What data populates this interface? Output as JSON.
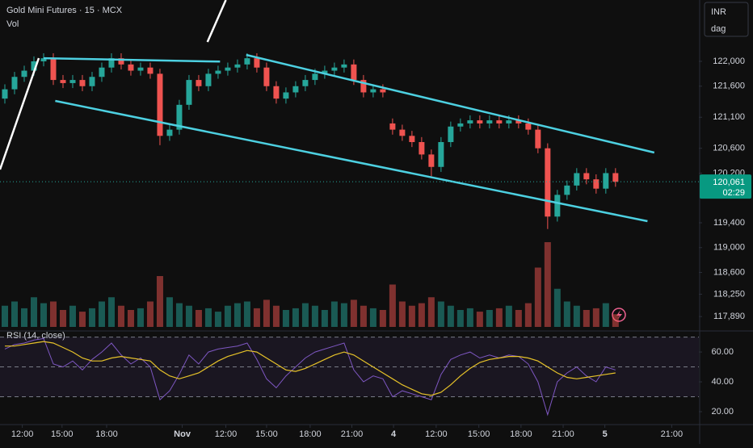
{
  "chart_data": {
    "type": "candlestick",
    "title": "Gold Mini Futures · 15 · MCX",
    "volume_label": "Vol",
    "currency": "INR",
    "interval_label": "dag",
    "up_color": "#26a69a",
    "down_color": "#ef5350",
    "xlim": [
      -0.5,
      71.6
    ],
    "xticks": [
      {
        "value": 1.8,
        "label": "12:00"
      },
      {
        "value": 5.9,
        "label": "15:00"
      },
      {
        "value": 10.5,
        "label": "18:00"
      },
      {
        "value": 18.3,
        "label": "Nov"
      },
      {
        "value": 22.8,
        "label": "12:00"
      },
      {
        "value": 27,
        "label": "15:00"
      },
      {
        "value": 31.5,
        "label": "18:00"
      },
      {
        "value": 35.8,
        "label": "21:00"
      },
      {
        "value": 40.1,
        "label": "4"
      },
      {
        "value": 44.5,
        "label": "12:00"
      },
      {
        "value": 48.9,
        "label": "15:00"
      },
      {
        "value": 53.25,
        "label": "18:00"
      },
      {
        "value": 57.6,
        "label": "21:00"
      },
      {
        "value": 61.9,
        "label": "5"
      },
      {
        "value": 68.8,
        "label": "21:00"
      }
    ],
    "ylim": [
      117658,
      122988
    ],
    "yticks": [
      {
        "value": 122000,
        "label": "122,000"
      },
      {
        "value": 121600,
        "label": "121,600"
      },
      {
        "value": 121100,
        "label": "121,100"
      },
      {
        "value": 120600,
        "label": "120,600"
      },
      {
        "value": 120200,
        "label": "120,200"
      },
      {
        "value": 119400,
        "label": "119,400"
      },
      {
        "value": 119000,
        "label": "119,000"
      },
      {
        "value": 118600,
        "label": "118,600"
      },
      {
        "value": 118250,
        "label": "118,250"
      },
      {
        "value": 117890,
        "label": "117,890"
      }
    ],
    "last_price": {
      "value": 120061,
      "label": "120,061"
    },
    "countdown": "02:29",
    "open": [
      121400,
      121550,
      121750,
      121850,
      122000,
      122050,
      121700,
      121650,
      121700,
      121600,
      121750,
      121900,
      122050,
      121950,
      121850,
      121900,
      121800,
      120800,
      120900,
      121300,
      121700,
      121600,
      121800,
      121850,
      121900,
      121950,
      122050,
      121900,
      121600,
      121400,
      121500,
      121600,
      121700,
      121800,
      121850,
      121900,
      121950,
      121700,
      121500,
      121550,
      121000,
      120900,
      120800,
      120700,
      120500,
      120300,
      120700,
      120950,
      121000,
      121050,
      121000,
      121050,
      121000,
      121050,
      121000,
      120900,
      120600,
      119500,
      119850,
      120000,
      120200,
      120100,
      119950,
      120200
    ],
    "high": [
      121630,
      121830,
      121930,
      122080,
      122130,
      122130,
      121780,
      121780,
      121780,
      121830,
      121980,
      122130,
      122130,
      122030,
      121980,
      121980,
      121880,
      120980,
      121380,
      121780,
      121780,
      121880,
      121930,
      121980,
      122030,
      122130,
      122130,
      121980,
      121680,
      121580,
      121680,
      121780,
      121880,
      121930,
      121980,
      122030,
      122030,
      121780,
      121630,
      121630,
      121080,
      120980,
      120880,
      120780,
      120580,
      120780,
      121030,
      121080,
      121130,
      121130,
      121130,
      121130,
      121130,
      121130,
      121080,
      120980,
      120680,
      119930,
      120080,
      120280,
      120280,
      120180,
      120280,
      120280
    ],
    "low": [
      121320,
      121470,
      121670,
      121770,
      121920,
      121620,
      121570,
      121570,
      121520,
      121520,
      121670,
      121820,
      121870,
      121770,
      121770,
      121720,
      120650,
      120720,
      120820,
      121220,
      121520,
      121520,
      121720,
      121770,
      121820,
      121870,
      121820,
      121520,
      121320,
      121320,
      121420,
      121520,
      121620,
      121720,
      121770,
      121820,
      121620,
      121420,
      121420,
      121420,
      120820,
      120720,
      120620,
      120420,
      120150,
      120220,
      120620,
      120870,
      120920,
      120920,
      120920,
      120920,
      120920,
      120920,
      120820,
      120520,
      119300,
      119420,
      119770,
      119920,
      120020,
      119870,
      119870,
      119980
    ],
    "close": [
      121550,
      121750,
      121850,
      122000,
      122050,
      121700,
      121650,
      121700,
      121600,
      121750,
      121900,
      122050,
      121950,
      121850,
      121900,
      121800,
      120800,
      120900,
      121300,
      121700,
      121600,
      121800,
      121850,
      121900,
      121950,
      122050,
      121900,
      121600,
      121400,
      121500,
      121600,
      121700,
      121800,
      121850,
      121900,
      121950,
      121700,
      121500,
      121550,
      121500,
      120900,
      120800,
      120700,
      120500,
      120300,
      120700,
      120950,
      121000,
      121050,
      121000,
      121050,
      121000,
      121050,
      121000,
      120900,
      120600,
      119500,
      119850,
      120000,
      120200,
      120100,
      119950,
      120200,
      120061
    ],
    "volume": [
      25,
      30,
      22,
      35,
      28,
      30,
      20,
      25,
      18,
      22,
      30,
      35,
      25,
      20,
      22,
      30,
      60,
      35,
      28,
      25,
      20,
      22,
      18,
      25,
      28,
      30,
      22,
      32,
      25,
      20,
      22,
      28,
      25,
      20,
      30,
      28,
      32,
      25,
      22,
      20,
      50,
      30,
      25,
      28,
      35,
      30,
      25,
      20,
      22,
      18,
      20,
      22,
      25,
      20,
      28,
      70,
      100,
      45,
      30,
      25,
      20,
      22,
      28,
      15
    ],
    "vlim": [
      0,
      100
    ],
    "drawings": [
      {
        "color": "#4dd0e1",
        "points": [
          [
            4,
            122050
          ],
          [
            22.2,
            121996
          ]
        ]
      },
      {
        "color": "#4dd0e1",
        "points": [
          [
            5.2,
            121363
          ],
          [
            66.3,
            119426
          ]
        ]
      },
      {
        "color": "#4dd0e1",
        "points": [
          [
            24.9,
            122104
          ],
          [
            67,
            120531
          ]
        ]
      },
      {
        "color": "#ffffff",
        "points": [
          [
            -0.5,
            120258
          ],
          [
            3.5,
            122052
          ]
        ]
      },
      {
        "color": "#ffffff",
        "points": [
          [
            20.9,
            122312
          ],
          [
            22.8,
            122988
          ]
        ]
      }
    ],
    "rsi": {
      "title": "RSI (14, close)",
      "ylim": [
        14.6,
        71.4
      ],
      "yticks": [
        {
          "value": 60,
          "label": "60.00"
        },
        {
          "value": 40,
          "label": "40.00"
        },
        {
          "value": 20,
          "label": "20.00"
        }
      ],
      "levels": [
        70,
        50,
        30
      ],
      "series": [
        {
          "color": "#7e57c2",
          "values": [
            62,
            65,
            66,
            68,
            69,
            52,
            50,
            54,
            48,
            55,
            60,
            66,
            58,
            52,
            56,
            50,
            28,
            34,
            45,
            58,
            52,
            60,
            62,
            63,
            64,
            66,
            55,
            42,
            36,
            44,
            50,
            56,
            60,
            62,
            64,
            66,
            48,
            40,
            44,
            42,
            30,
            34,
            32,
            30,
            28,
            45,
            55,
            58,
            60,
            56,
            58,
            56,
            58,
            57,
            52,
            40,
            18,
            40,
            46,
            50,
            44,
            40,
            50,
            48
          ]
        },
        {
          "color": "#e6c229",
          "values": [
            64,
            64,
            65,
            66,
            67,
            66,
            63,
            60,
            56,
            54,
            54,
            56,
            57,
            56,
            55,
            54,
            48,
            44,
            42,
            44,
            46,
            50,
            54,
            57,
            59,
            61,
            60,
            56,
            52,
            48,
            47,
            49,
            52,
            55,
            58,
            60,
            58,
            54,
            50,
            46,
            42,
            38,
            35,
            32,
            31,
            33,
            38,
            44,
            49,
            53,
            55,
            56,
            57,
            57,
            56,
            54,
            50,
            46,
            43,
            42,
            43,
            44,
            45,
            46
          ]
        }
      ]
    }
  }
}
